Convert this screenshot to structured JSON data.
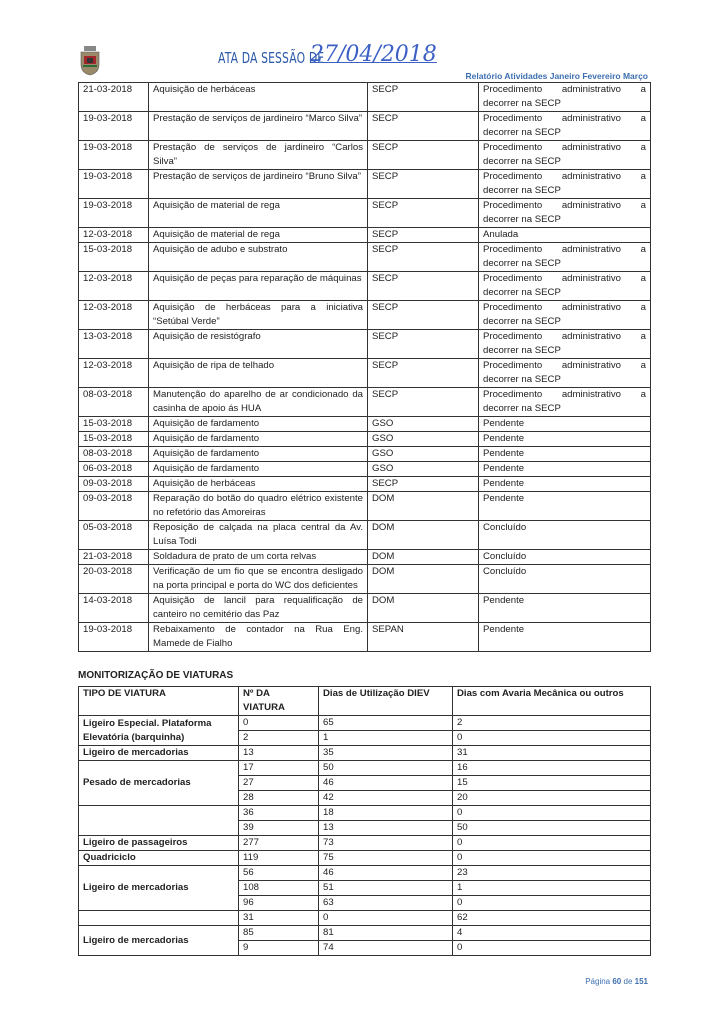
{
  "header": {
    "title": "ATA DA SESSÃO DE",
    "handwritten_date": "27/04/2018",
    "subtitle": "Relatório Atividades Janeiro Fevereiro Março"
  },
  "activities": [
    {
      "date": "21-03-2018",
      "description": "Aquisição de herbáceas",
      "dept": "SECP",
      "status": "Procedimento administrativo a decorrer na SECP"
    },
    {
      "date": "19-03-2018",
      "description": "Prestação de serviços de jardineiro “Marco Silva”",
      "dept": "SECP",
      "status": "Procedimento administrativo a decorrer na SECP"
    },
    {
      "date": "19-03-2018",
      "description": "Prestação de serviços de jardineiro “Carlos Silva”",
      "dept": "SECP",
      "status": "Procedimento administrativo a decorrer na SECP"
    },
    {
      "date": "19-03-2018",
      "description": "Prestação de serviços de jardineiro “Bruno Silva”",
      "dept": "SECP",
      "status": "Procedimento administrativo a decorrer na SECP"
    },
    {
      "date": "19-03-2018",
      "description": "Aquisição de material de rega",
      "dept": "SECP",
      "status": "Procedimento administrativo a decorrer na SECP"
    },
    {
      "date": "12-03-2018",
      "description": "Aquisição de material de rega",
      "dept": "SECP",
      "status": "Anulada"
    },
    {
      "date": "15-03-2018",
      "description": "Aquisição de adubo e substrato",
      "dept": "SECP",
      "status": "Procedimento administrativo a decorrer na SECP"
    },
    {
      "date": "12-03-2018",
      "description": "Aquisição de peças para reparação de máquinas",
      "dept": "SECP",
      "status": "Procedimento administrativo a decorrer na SECP"
    },
    {
      "date": "12-03-2018",
      "description": "Aquisição de herbáceas para a iniciativa “Setúbal Verde”",
      "dept": "SECP",
      "status": "Procedimento administrativo a decorrer na SECP"
    },
    {
      "date": "13-03-2018",
      "description": "Aquisição de resistógrafo",
      "dept": "SECP",
      "status": "Procedimento administrativo a decorrer na SECP"
    },
    {
      "date": "12-03-2018",
      "description": "Aquisição de ripa de telhado",
      "dept": "SECP",
      "status": "Procedimento administrativo a decorrer na SECP"
    },
    {
      "date": "08-03-2018",
      "description": "Manutenção do aparelho de ar condicionado da casinha de apoio ás HUA",
      "dept": "SECP",
      "status": "Procedimento administrativo a decorrer na SECP"
    },
    {
      "date": "15-03-2018",
      "description": "Aquisição de fardamento",
      "dept": "GSO",
      "status": "Pendente"
    },
    {
      "date": "15-03-2018",
      "description": "Aquisição de fardamento",
      "dept": "GSO",
      "status": "Pendente"
    },
    {
      "date": "08-03-2018",
      "description": "Aquisição de fardamento",
      "dept": "GSO",
      "status": "Pendente"
    },
    {
      "date": "06-03-2018",
      "description": "Aquisição de fardamento",
      "dept": "GSO",
      "status": "Pendente"
    },
    {
      "date": "09-03-2018",
      "description": "Aquisição de herbáceas",
      "dept": "SECP",
      "status": "Pendente"
    },
    {
      "date": "09-03-2018",
      "description": "Reparação do botão do quadro elétrico existente no refetório das Amoreiras",
      "dept": "DOM",
      "status": "Pendente"
    },
    {
      "date": "05-03-2018",
      "description": "Reposição de calçada na placa central da Av. Luísa Todi",
      "dept": "DOM",
      "status": "Concluído"
    },
    {
      "date": "21-03-2018",
      "description": "Soldadura de prato de um corta relvas",
      "dept": "DOM",
      "status": "Concluído"
    },
    {
      "date": "20-03-2018",
      "description": "Verificação de um fio que se encontra desligado na porta principal e porta do WC dos deficientes",
      "dept": "DOM",
      "status": "Concluído"
    },
    {
      "date": "14-03-2018",
      "description": "Aquisição de lancil para requalificação de canteiro no cemitério das Paz",
      "dept": "DOM",
      "status": "Pendente"
    },
    {
      "date": "19-03-2018",
      "description": "Rebaixamento de contador na Rua Eng. Mamede de Fialho",
      "dept": "SEPAN",
      "status": "Pendente"
    }
  ],
  "vehicles": {
    "section_title": "MONITORIZAÇÃO DE VIATURAS",
    "headers": [
      "TIPO DE VIATURA",
      "Nº DA VIATURA",
      "Dias de Utilização DIEV",
      "Dias com Avaria Mecânica ou outros"
    ],
    "groups": [
      {
        "type": "Ligeiro Especial. Plataforma Elevatória (barquinha)",
        "rows": [
          [
            "0",
            "65",
            "2"
          ],
          [
            "2",
            "1",
            "0"
          ]
        ]
      },
      {
        "type": "Ligeiro de mercadorias",
        "rows": [
          [
            "13",
            "35",
            "31"
          ]
        ]
      },
      {
        "type": "Pesado de mercadorias",
        "rows": [
          [
            "17",
            "50",
            "16"
          ],
          [
            "27",
            "46",
            "15"
          ],
          [
            "28",
            "42",
            "20"
          ]
        ]
      },
      {
        "type": "",
        "rows": [
          [
            "36",
            "18",
            "0"
          ],
          [
            "39",
            "13",
            "50"
          ]
        ]
      },
      {
        "type": "Ligeiro de passageiros",
        "rows": [
          [
            "277",
            "73",
            "0"
          ]
        ]
      },
      {
        "type": "Quadriciclo",
        "rows": [
          [
            "119",
            "75",
            "0"
          ]
        ]
      },
      {
        "type": "Ligeiro de mercadorias",
        "rows": [
          [
            "56",
            "46",
            "23"
          ],
          [
            "108",
            "51",
            "1"
          ],
          [
            "96",
            "63",
            "0"
          ]
        ]
      },
      {
        "type": "",
        "rows": [
          [
            "31",
            "0",
            "62"
          ]
        ]
      },
      {
        "type": "Ligeiro de mercadorias",
        "rows": [
          [
            "85",
            "81",
            "4"
          ],
          [
            "9",
            "74",
            "0"
          ]
        ]
      }
    ]
  },
  "footer": {
    "prefix": "Página",
    "page": "60",
    "sep": "de",
    "total": "151"
  },
  "colors": {
    "title": "#2a58a8",
    "subtitle": "#3c6fb0",
    "handwriting": "#3b5fc4"
  }
}
